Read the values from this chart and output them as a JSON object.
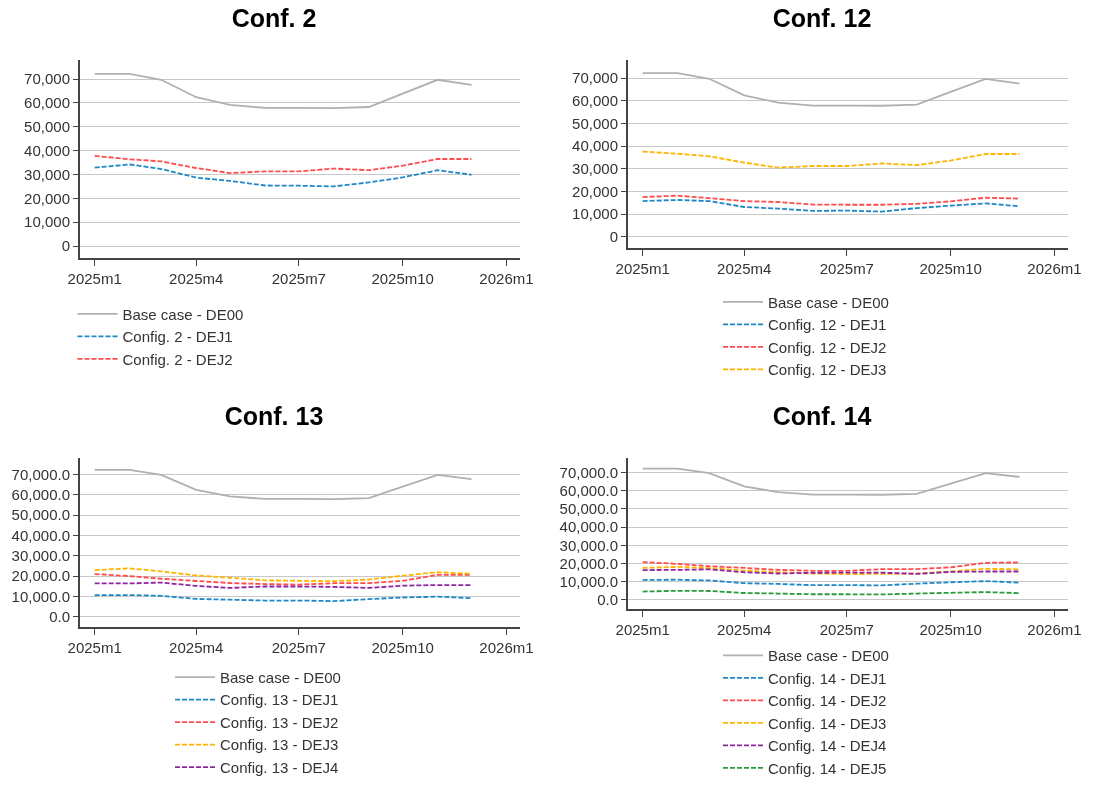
{
  "chart_data": [
    {
      "type": "line",
      "title": "Conf. 2",
      "x": [
        "2025-01",
        "2025-02",
        "2025-03",
        "2025-04",
        "2025-05",
        "2025-06",
        "2025-07",
        "2025-08",
        "2025-09",
        "2025-10",
        "2025-11",
        "2025-12"
      ],
      "xlim": [
        "2024-12-19",
        "2026-01-13"
      ],
      "xticks": [
        {
          "value": "2025-01",
          "label": "2025m1"
        },
        {
          "value": "2025-04",
          "label": "2025m4"
        },
        {
          "value": "2025-07",
          "label": "2025m7"
        },
        {
          "value": "2025-10",
          "label": "2025m10"
        },
        {
          "value": "2026-01",
          "label": "2026m1"
        }
      ],
      "ylim": [
        -5000,
        78000
      ],
      "yticks": [
        {
          "value": 0,
          "label": "0"
        },
        {
          "value": 10000,
          "label": "10,000"
        },
        {
          "value": 20000,
          "label": "20,000"
        },
        {
          "value": 30000,
          "label": "30,000"
        },
        {
          "value": 40000,
          "label": "40,000"
        },
        {
          "value": 50000,
          "label": "50,000"
        },
        {
          "value": 60000,
          "label": "60,000"
        },
        {
          "value": 70000,
          "label": "70,000"
        }
      ],
      "grid": "y",
      "legend": "bottom",
      "series": [
        {
          "name": "Base case - DE00",
          "color": "#b0b0b0",
          "line_style": "solid",
          "values": [
            72200,
            72200,
            69700,
            62400,
            59200,
            57900,
            57900,
            57800,
            58300,
            63900,
            69700,
            67600
          ]
        },
        {
          "name": "Config. 2 - DEJ1",
          "color": "#1f87c6",
          "line_style": "dashed",
          "values": [
            32900,
            34200,
            32300,
            28700,
            27300,
            25400,
            25300,
            25000,
            26700,
            28800,
            31800,
            29900
          ]
        },
        {
          "name": "Config. 2 - DEJ2",
          "color": "#ff4b4b",
          "line_style": "dashed",
          "values": [
            37800,
            36400,
            35500,
            32700,
            30600,
            31300,
            31300,
            32500,
            31800,
            33700,
            36500,
            36500
          ]
        }
      ]
    },
    {
      "type": "line",
      "title": "Conf. 12",
      "x": [
        "2025-01",
        "2025-02",
        "2025-03",
        "2025-04",
        "2025-05",
        "2025-06",
        "2025-07",
        "2025-08",
        "2025-09",
        "2025-10",
        "2025-11",
        "2025-12"
      ],
      "xlim": [
        "2024-12-19",
        "2026-01-13"
      ],
      "xticks": [
        {
          "value": "2025-01",
          "label": "2025m1"
        },
        {
          "value": "2025-04",
          "label": "2025m4"
        },
        {
          "value": "2025-07",
          "label": "2025m7"
        },
        {
          "value": "2025-10",
          "label": "2025m10"
        },
        {
          "value": "2026-01",
          "label": "2026m1"
        }
      ],
      "ylim": [
        -5000,
        78000
      ],
      "yticks": [
        {
          "value": 0,
          "label": "0"
        },
        {
          "value": 10000,
          "label": "10,000"
        },
        {
          "value": 20000,
          "label": "20,000"
        },
        {
          "value": 30000,
          "label": "30,000"
        },
        {
          "value": 40000,
          "label": "40,000"
        },
        {
          "value": 50000,
          "label": "50,000"
        },
        {
          "value": 60000,
          "label": "60,000"
        },
        {
          "value": 70000,
          "label": "70,000"
        }
      ],
      "grid": "y",
      "legend": "bottom",
      "series": [
        {
          "name": "Base case - DE00",
          "color": "#b0b0b0",
          "line_style": "solid",
          "values": [
            72200,
            72200,
            69700,
            62400,
            59200,
            57900,
            57900,
            57800,
            58300,
            63900,
            69700,
            67600
          ]
        },
        {
          "name": "Config. 12 - DEJ1",
          "color": "#1f87c6",
          "line_style": "dashed",
          "values": [
            15700,
            16200,
            15700,
            13100,
            12400,
            11400,
            11500,
            11100,
            12600,
            13700,
            14700,
            13400
          ]
        },
        {
          "name": "Config. 12 - DEJ2",
          "color": "#ff4b4b",
          "line_style": "dashed",
          "values": [
            17500,
            18100,
            17000,
            15700,
            15300,
            14200,
            14100,
            14100,
            14500,
            15600,
            17200,
            16800
          ]
        },
        {
          "name": "Config. 12 - DEJ3",
          "color": "#ffb400",
          "line_style": "dashed",
          "values": [
            37600,
            36600,
            35500,
            32700,
            30500,
            31200,
            31200,
            32300,
            31600,
            33600,
            36500,
            36500
          ]
        }
      ]
    },
    {
      "type": "line",
      "title": "Conf. 13",
      "x": [
        "2025-01",
        "2025-02",
        "2025-03",
        "2025-04",
        "2025-05",
        "2025-06",
        "2025-07",
        "2025-08",
        "2025-09",
        "2025-10",
        "2025-11",
        "2025-12"
      ],
      "xlim": [
        "2024-12-19",
        "2026-01-13"
      ],
      "xticks": [
        {
          "value": "2025-01",
          "label": "2025m1"
        },
        {
          "value": "2025-04",
          "label": "2025m4"
        },
        {
          "value": "2025-07",
          "label": "2025m7"
        },
        {
          "value": "2025-10",
          "label": "2025m10"
        },
        {
          "value": "2026-01",
          "label": "2026m1"
        }
      ],
      "ylim": [
        -5000,
        78000
      ],
      "yticks": [
        {
          "value": 0,
          "label": "0.0"
        },
        {
          "value": 10000,
          "label": "10,000.0"
        },
        {
          "value": 20000,
          "label": "20,000.0"
        },
        {
          "value": 30000,
          "label": "30,000.0"
        },
        {
          "value": 40000,
          "label": "40,000.0"
        },
        {
          "value": 50000,
          "label": "50,000.0"
        },
        {
          "value": 60000,
          "label": "60,000.0"
        },
        {
          "value": 70000,
          "label": "70,000.0"
        }
      ],
      "grid": "y",
      "legend": "bottom",
      "series": [
        {
          "name": "Base case - DE00",
          "color": "#b0b0b0",
          "line_style": "solid",
          "values": [
            72200,
            72200,
            69700,
            62400,
            59200,
            57900,
            57900,
            57800,
            58300,
            63900,
            69700,
            67600
          ]
        },
        {
          "name": "Config. 13 - DEJ1",
          "color": "#1f87c6",
          "line_style": "dashed",
          "values": [
            10600,
            10700,
            10300,
            8800,
            8400,
            8000,
            8000,
            7700,
            8700,
            9500,
            9900,
            9200
          ]
        },
        {
          "name": "Config. 13 - DEJ2",
          "color": "#ff4b4b",
          "line_style": "dashed",
          "values": [
            21000,
            20000,
            18700,
            17600,
            16600,
            16100,
            15800,
            16500,
            16500,
            17700,
            20600,
            20600
          ]
        },
        {
          "name": "Config. 13 - DEJ3",
          "color": "#ffb400",
          "line_style": "dashed",
          "values": [
            22900,
            23800,
            22300,
            20300,
            19200,
            17900,
            17700,
            17500,
            18300,
            20200,
            21900,
            21200
          ]
        },
        {
          "name": "Config. 13 - DEJ4",
          "color": "#8e24a0",
          "line_style": "dashed",
          "values": [
            16400,
            16400,
            16800,
            15200,
            14200,
            14900,
            14900,
            14700,
            14200,
            15300,
            15600,
            15600
          ]
        }
      ]
    },
    {
      "type": "line",
      "title": "Conf. 14",
      "x": [
        "2025-01",
        "2025-02",
        "2025-03",
        "2025-04",
        "2025-05",
        "2025-06",
        "2025-07",
        "2025-08",
        "2025-09",
        "2025-10",
        "2025-11",
        "2025-12"
      ],
      "xlim": [
        "2024-12-19",
        "2026-01-13"
      ],
      "xticks": [
        {
          "value": "2025-01",
          "label": "2025m1"
        },
        {
          "value": "2025-04",
          "label": "2025m4"
        },
        {
          "value": "2025-07",
          "label": "2025m7"
        },
        {
          "value": "2025-10",
          "label": "2025m10"
        },
        {
          "value": "2026-01",
          "label": "2026m1"
        }
      ],
      "ylim": [
        -5000,
        78000
      ],
      "yticks": [
        {
          "value": 0,
          "label": "0.0"
        },
        {
          "value": 10000,
          "label": "10,000.0"
        },
        {
          "value": 20000,
          "label": "20,000.0"
        },
        {
          "value": 30000,
          "label": "30,000.0"
        },
        {
          "value": 40000,
          "label": "40,000.0"
        },
        {
          "value": 50000,
          "label": "50,000.0"
        },
        {
          "value": 60000,
          "label": "60,000.0"
        },
        {
          "value": 70000,
          "label": "70,000.0"
        }
      ],
      "grid": "y",
      "legend": "bottom",
      "series": [
        {
          "name": "Base case - DE00",
          "color": "#b0b0b0",
          "line_style": "solid",
          "values": [
            72200,
            72200,
            69700,
            62400,
            59200,
            57900,
            57900,
            57800,
            58300,
            63900,
            69700,
            67600
          ]
        },
        {
          "name": "Config. 14 - DEJ1",
          "color": "#1f87c6",
          "line_style": "dashed",
          "values": [
            11000,
            11100,
            10700,
            9200,
            8800,
            8100,
            8100,
            8000,
            8900,
            9700,
            10300,
            9500
          ]
        },
        {
          "name": "Config. 14 - DEJ2",
          "color": "#ff4b4b",
          "line_style": "dashed",
          "values": [
            20800,
            19800,
            18500,
            17600,
            16500,
            16000,
            16000,
            16900,
            16900,
            17900,
            20400,
            20600
          ]
        },
        {
          "name": "Config. 14 - DEJ3",
          "color": "#ffb400",
          "line_style": "dashed",
          "values": [
            17600,
            18100,
            17500,
            16100,
            15200,
            14500,
            14200,
            14300,
            14500,
            15600,
            17100,
            16800
          ]
        },
        {
          "name": "Config. 14 - DEJ4",
          "color": "#8e24a0",
          "line_style": "dashed",
          "values": [
            16400,
            16500,
            16800,
            15200,
            14500,
            14900,
            15000,
            15000,
            14300,
            15400,
            15600,
            15600
          ]
        },
        {
          "name": "Config. 14 - DEJ5",
          "color": "#2a9a3a",
          "line_style": "dashed",
          "values": [
            4600,
            5000,
            4900,
            3800,
            3500,
            3100,
            3100,
            3000,
            3500,
            3900,
            4300,
            3700
          ]
        }
      ]
    }
  ]
}
